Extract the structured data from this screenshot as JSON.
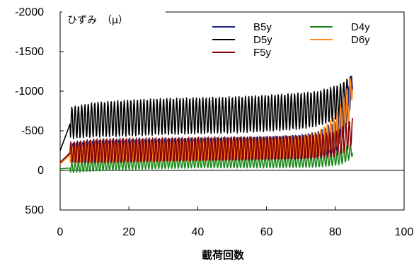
{
  "chart_data": {
    "type": "line",
    "unit_label": "ひずみ　（μ）",
    "xlabel": "載荷回数",
    "ylabel": "",
    "xlim": [
      0,
      100
    ],
    "ylim": [
      500,
      -2000
    ],
    "y_inverted": true,
    "x_ticks": [
      0,
      20,
      40,
      60,
      80,
      100
    ],
    "y_ticks": [
      -2000,
      -1500,
      -1000,
      -500,
      0,
      500
    ],
    "legend_position": "top-right",
    "grid": false,
    "series": [
      {
        "name": "B5y",
        "color": "#1a237e",
        "x": [
          0,
          3,
          10,
          20,
          30,
          40,
          50,
          60,
          70,
          75,
          80,
          82,
          84,
          85
        ],
        "base": [
          -100,
          -220,
          -240,
          -250,
          -260,
          -270,
          -275,
          -285,
          -300,
          -330,
          -420,
          -600,
          -900,
          -1100
        ],
        "amp": [
          0,
          120,
          140,
          140,
          140,
          140,
          140,
          140,
          150,
          160,
          200,
          220,
          200,
          150
        ]
      },
      {
        "name": "D4y",
        "color": "#1a8a1a",
        "x": [
          0,
          3,
          10,
          20,
          30,
          40,
          50,
          60,
          70,
          75,
          80,
          82,
          84,
          85
        ],
        "base": [
          -20,
          -30,
          -60,
          -80,
          -90,
          -100,
          -100,
          -100,
          -110,
          -120,
          -150,
          -180,
          -230,
          -260
        ],
        "amp": [
          0,
          60,
          70,
          70,
          70,
          70,
          70,
          70,
          75,
          80,
          90,
          100,
          100,
          80
        ]
      },
      {
        "name": "D5y",
        "color": "#000000",
        "x": [
          0,
          3,
          10,
          20,
          30,
          40,
          50,
          60,
          70,
          75,
          80,
          82,
          84,
          85
        ],
        "base": [
          -250,
          -600,
          -640,
          -660,
          -680,
          -690,
          -700,
          -720,
          -750,
          -780,
          -850,
          -900,
          -1000,
          -1100
        ],
        "amp": [
          0,
          200,
          220,
          230,
          230,
          230,
          230,
          230,
          230,
          220,
          220,
          200,
          180,
          100
        ]
      },
      {
        "name": "D6y",
        "color": "#ff8c1a",
        "x": [
          0,
          3,
          10,
          20,
          30,
          40,
          50,
          60,
          70,
          75,
          80,
          82,
          84,
          85
        ],
        "base": [
          -80,
          -200,
          -220,
          -230,
          -240,
          -250,
          -260,
          -270,
          -290,
          -330,
          -480,
          -650,
          -850,
          -1100
        ],
        "amp": [
          0,
          110,
          130,
          130,
          130,
          130,
          130,
          130,
          140,
          160,
          200,
          230,
          250,
          150
        ]
      },
      {
        "name": "F5y",
        "color": "#8b0000",
        "x": [
          0,
          3,
          10,
          20,
          30,
          40,
          50,
          60,
          70,
          75,
          80,
          82,
          84,
          85
        ],
        "base": [
          -100,
          -230,
          -250,
          -260,
          -265,
          -270,
          -275,
          -280,
          -290,
          -300,
          -330,
          -380,
          -450,
          -500
        ],
        "amp": [
          0,
          130,
          150,
          150,
          150,
          150,
          150,
          150,
          150,
          150,
          160,
          170,
          180,
          160
        ]
      }
    ]
  }
}
